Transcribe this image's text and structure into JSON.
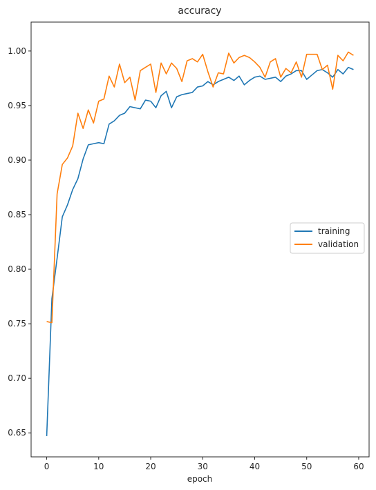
{
  "chart_data": {
    "type": "line",
    "title": "accuracy",
    "xlabel": "epoch",
    "ylabel": "",
    "xlim": [
      -3,
      62
    ],
    "ylim": [
      0.628,
      1.0265
    ],
    "xticks": [
      0,
      10,
      20,
      30,
      40,
      50,
      60
    ],
    "yticks": [
      0.65,
      0.7,
      0.75,
      0.8,
      0.85,
      0.9,
      0.95,
      1.0
    ],
    "ytick_labels": [
      "0.65",
      "0.70",
      "0.75",
      "0.80",
      "0.85",
      "0.90",
      "0.95",
      "1.00"
    ],
    "grid": false,
    "legend_position": "center-right",
    "x": [
      0,
      1,
      2,
      3,
      4,
      5,
      6,
      7,
      8,
      9,
      10,
      11,
      12,
      13,
      14,
      15,
      16,
      17,
      18,
      19,
      20,
      21,
      22,
      23,
      24,
      25,
      26,
      27,
      28,
      29,
      30,
      31,
      32,
      33,
      34,
      35,
      36,
      37,
      38,
      39,
      40,
      41,
      42,
      43,
      44,
      45,
      46,
      47,
      48,
      49,
      50,
      51,
      52,
      53,
      54,
      55,
      56,
      57,
      58,
      59
    ],
    "series": [
      {
        "name": "training",
        "color": "#1f77b4",
        "values": [
          0.647,
          0.773,
          0.81,
          0.848,
          0.859,
          0.873,
          0.883,
          0.901,
          0.914,
          0.915,
          0.916,
          0.915,
          0.933,
          0.936,
          0.941,
          0.943,
          0.949,
          0.948,
          0.947,
          0.955,
          0.954,
          0.948,
          0.959,
          0.963,
          0.948,
          0.958,
          0.96,
          0.961,
          0.962,
          0.967,
          0.968,
          0.972,
          0.969,
          0.972,
          0.974,
          0.976,
          0.973,
          0.977,
          0.969,
          0.973,
          0.976,
          0.977,
          0.974,
          0.975,
          0.976,
          0.972,
          0.977,
          0.979,
          0.982,
          0.982,
          0.974,
          0.978,
          0.982,
          0.983,
          0.98,
          0.976,
          0.983,
          0.979,
          0.985,
          0.983
        ]
      },
      {
        "name": "validation",
        "color": "#ff7f0e",
        "values": [
          0.752,
          0.751,
          0.869,
          0.896,
          0.902,
          0.913,
          0.943,
          0.929,
          0.946,
          0.934,
          0.954,
          0.956,
          0.977,
          0.967,
          0.988,
          0.971,
          0.976,
          0.955,
          0.982,
          0.985,
          0.988,
          0.962,
          0.989,
          0.979,
          0.989,
          0.984,
          0.972,
          0.991,
          0.993,
          0.99,
          0.997,
          0.981,
          0.967,
          0.98,
          0.979,
          0.998,
          0.989,
          0.994,
          0.996,
          0.994,
          0.99,
          0.985,
          0.976,
          0.99,
          0.993,
          0.976,
          0.984,
          0.98,
          0.99,
          0.976,
          0.997,
          0.997,
          0.997,
          0.983,
          0.987,
          0.965,
          0.996,
          0.991,
          0.999,
          0.996
        ]
      }
    ]
  }
}
